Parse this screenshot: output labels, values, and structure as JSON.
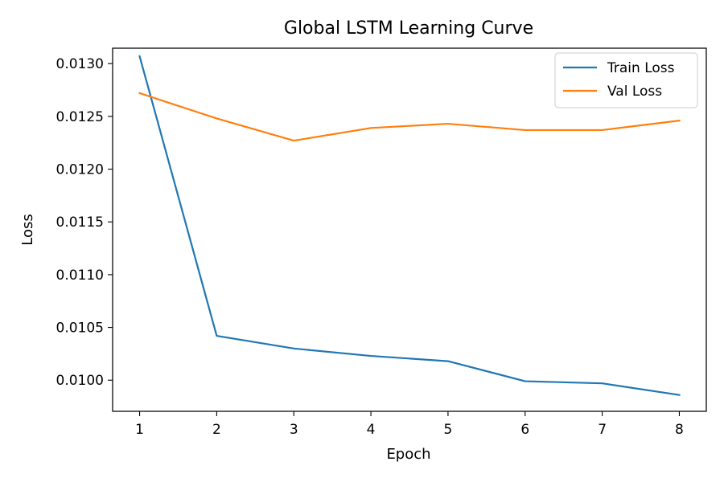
{
  "chart_data": {
    "type": "line",
    "title": "Global LSTM Learning Curve",
    "xlabel": "Epoch",
    "ylabel": "Loss",
    "x": [
      1,
      2,
      3,
      4,
      5,
      6,
      7,
      8
    ],
    "xticks": [
      "1",
      "2",
      "3",
      "4",
      "5",
      "6",
      "7",
      "8"
    ],
    "xlim": [
      0.65,
      8.35
    ],
    "ylim": [
      0.009705,
      0.013146
    ],
    "yticks": [
      0.01,
      0.0105,
      0.011,
      0.0115,
      0.012,
      0.0125,
      0.013
    ],
    "ytick_labels": [
      "0.0100",
      "0.0105",
      "0.0110",
      "0.0115",
      "0.0120",
      "0.0125",
      "0.0130"
    ],
    "grid": false,
    "legend": "top-right",
    "series": [
      {
        "name": "Train Loss",
        "color": "#1f77b4",
        "values": [
          0.01307,
          0.01042,
          0.0103,
          0.01023,
          0.01018,
          0.00999,
          0.00997,
          0.00986
        ]
      },
      {
        "name": "Val Loss",
        "color": "#ff7f0e",
        "values": [
          0.01272,
          0.01248,
          0.01227,
          0.01239,
          0.01243,
          0.01237,
          0.01237,
          0.01246
        ]
      }
    ]
  }
}
